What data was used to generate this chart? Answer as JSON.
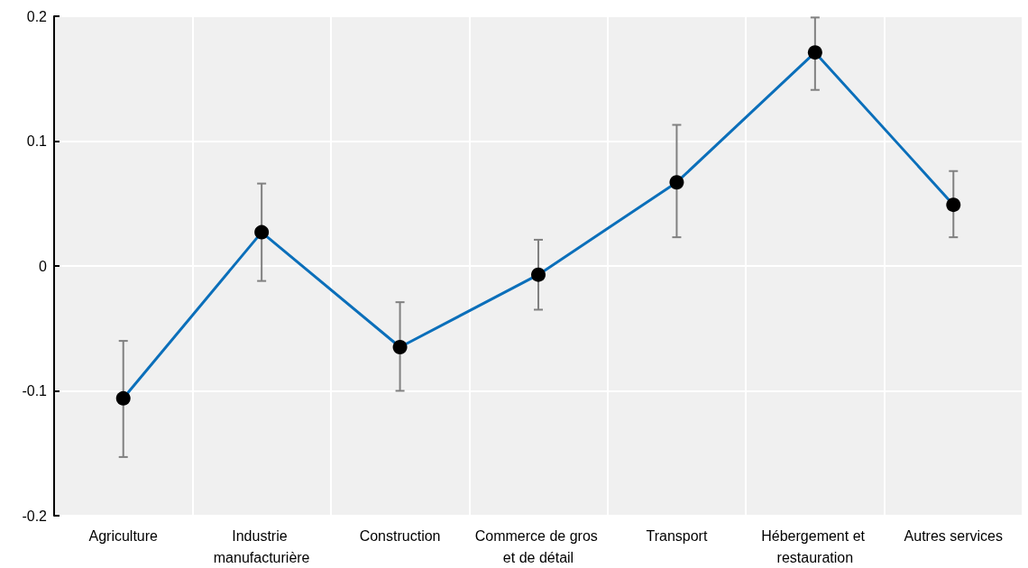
{
  "chart_data": {
    "type": "line",
    "categories": [
      "Agriculture",
      "Industrie manufacturière",
      "Construction",
      "Commerce de gros et de détail",
      "Transport",
      "Hébergement et restauration",
      "Autres services"
    ],
    "series": [
      {
        "color": "#0b6fba",
        "values": [
          -0.106,
          0.027,
          -0.065,
          -0.007,
          0.067,
          0.171,
          0.049
        ],
        "errors": [
          [
            -0.153,
            -0.06
          ],
          [
            -0.012,
            0.066
          ],
          [
            -0.1,
            -0.029
          ],
          [
            -0.035,
            0.021
          ],
          [
            0.023,
            0.113
          ],
          [
            0.141,
            0.199
          ],
          [
            0.023,
            0.076
          ]
        ]
      }
    ],
    "ylim": [
      -0.2,
      0.2
    ],
    "yticks": [
      -0.2,
      -0.1,
      0,
      0.1,
      0.2
    ],
    "grid": true,
    "marker": "circle",
    "line_style": "solid"
  }
}
